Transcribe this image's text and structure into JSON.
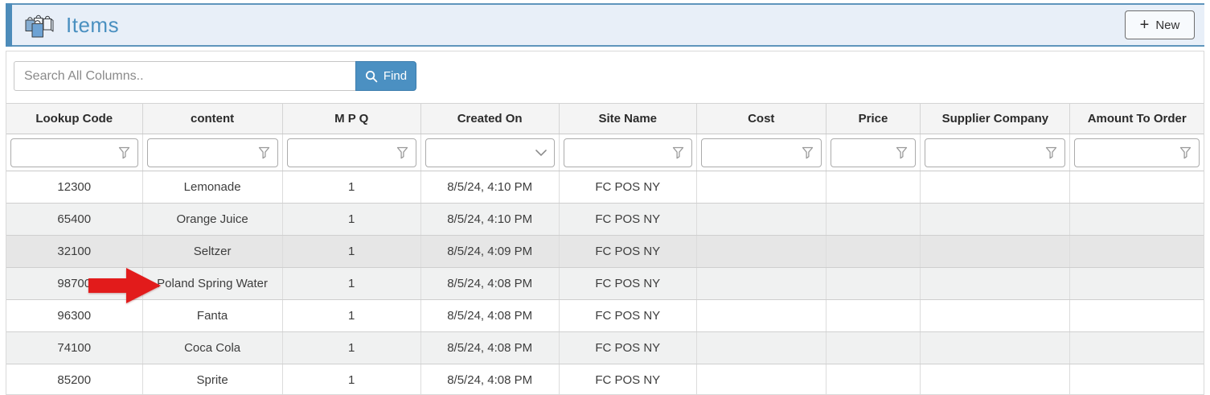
{
  "header": {
    "title": "Items",
    "icon": "items-bags-icon",
    "new_button": {
      "plus": "+",
      "label": "New"
    }
  },
  "search": {
    "placeholder": "Search All Columns..",
    "find_label": "Find",
    "find_icon": "search-icon"
  },
  "table": {
    "columns": [
      {
        "key": "lookup_code",
        "label": "Lookup Code",
        "filter_icon": "funnel-icon"
      },
      {
        "key": "content",
        "label": "content",
        "filter_icon": "funnel-icon"
      },
      {
        "key": "mpq",
        "label": "M P Q",
        "filter_icon": "funnel-icon"
      },
      {
        "key": "created_on",
        "label": "Created On",
        "filter_icon": "chevron-down-icon"
      },
      {
        "key": "site_name",
        "label": "Site Name",
        "filter_icon": "funnel-icon"
      },
      {
        "key": "cost",
        "label": "Cost",
        "filter_icon": "funnel-icon"
      },
      {
        "key": "price",
        "label": "Price",
        "filter_icon": "funnel-icon"
      },
      {
        "key": "supplier_company",
        "label": "Supplier Company",
        "filter_icon": "funnel-icon"
      },
      {
        "key": "amount_to_order",
        "label": "Amount To Order",
        "filter_icon": "funnel-icon"
      }
    ],
    "rows": [
      {
        "highlighted": false,
        "cells": {
          "lookup_code": "12300",
          "content": "Lemonade",
          "mpq": "1",
          "created_on": "8/5/24, 4:10 PM",
          "site_name": "FC POS NY",
          "cost": "",
          "price": "",
          "supplier_company": "",
          "amount_to_order": ""
        }
      },
      {
        "highlighted": false,
        "cells": {
          "lookup_code": "65400",
          "content": "Orange Juice",
          "mpq": "1",
          "created_on": "8/5/24, 4:10 PM",
          "site_name": "FC POS NY",
          "cost": "",
          "price": "",
          "supplier_company": "",
          "amount_to_order": ""
        }
      },
      {
        "highlighted": true,
        "cells": {
          "lookup_code": "32100",
          "content": "Seltzer",
          "mpq": "1",
          "created_on": "8/5/24, 4:09 PM",
          "site_name": "FC POS NY",
          "cost": "",
          "price": "",
          "supplier_company": "",
          "amount_to_order": ""
        }
      },
      {
        "highlighted": false,
        "cells": {
          "lookup_code": "98700",
          "content": "Poland Spring Water",
          "mpq": "1",
          "created_on": "8/5/24, 4:08 PM",
          "site_name": "FC POS NY",
          "cost": "",
          "price": "",
          "supplier_company": "",
          "amount_to_order": ""
        }
      },
      {
        "highlighted": false,
        "cells": {
          "lookup_code": "96300",
          "content": "Fanta",
          "mpq": "1",
          "created_on": "8/5/24, 4:08 PM",
          "site_name": "FC POS NY",
          "cost": "",
          "price": "",
          "supplier_company": "",
          "amount_to_order": ""
        }
      },
      {
        "highlighted": false,
        "cells": {
          "lookup_code": "74100",
          "content": "Coca Cola",
          "mpq": "1",
          "created_on": "8/5/24, 4:08 PM",
          "site_name": "FC POS NY",
          "cost": "",
          "price": "",
          "supplier_company": "",
          "amount_to_order": ""
        }
      },
      {
        "highlighted": false,
        "cells": {
          "lookup_code": "85200",
          "content": "Sprite",
          "mpq": "1",
          "created_on": "8/5/24, 4:08 PM",
          "site_name": "FC POS NY",
          "cost": "",
          "price": "",
          "supplier_company": "",
          "amount_to_order": ""
        }
      }
    ]
  },
  "annotation": {
    "type": "red-arrow",
    "points_at": "Poland Spring Water",
    "color": "#e21b1b"
  },
  "colors": {
    "accent_blue": "#4d8cba",
    "header_band_bg": "#e8eff8",
    "header_band_border": "#5f95bc",
    "title_text": "#4a90c0",
    "find_button_bg": "#4b90c2",
    "row_alt_bg": "#f0f1f1",
    "row_highlight_bg": "#e6e6e6"
  }
}
